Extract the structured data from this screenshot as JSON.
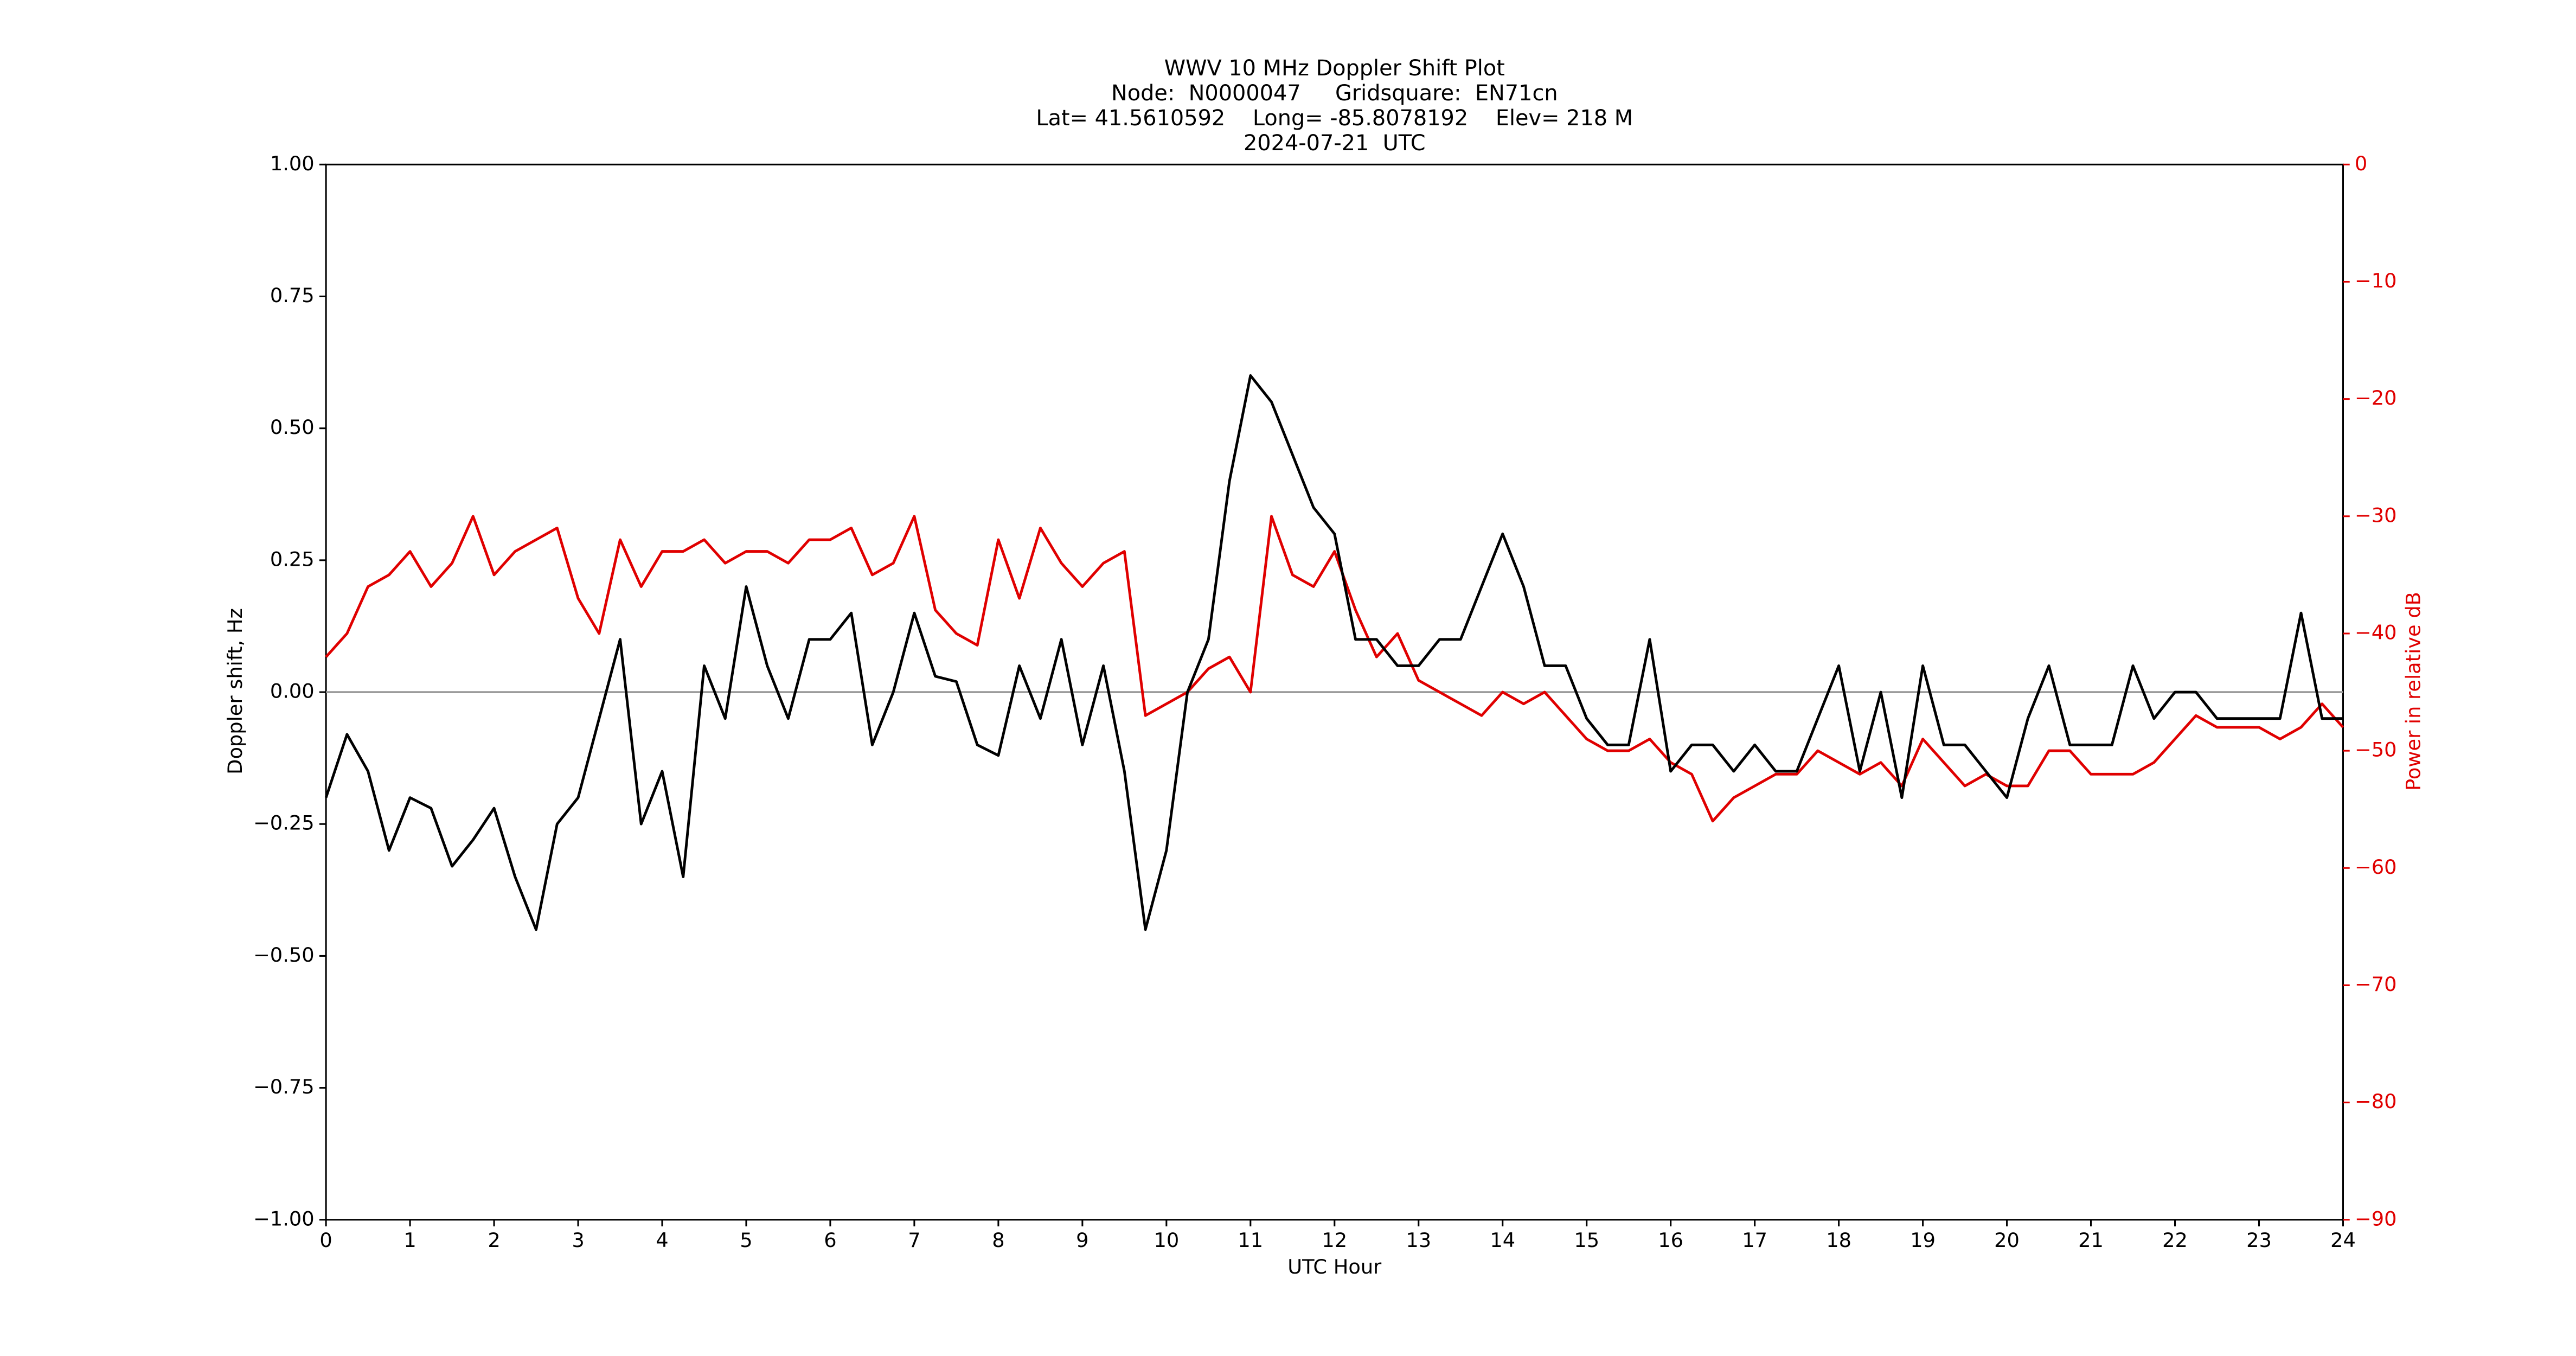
{
  "chart_data": {
    "type": "line",
    "title": [
      "WWV 10 MHz Doppler Shift Plot",
      "Node:  N0000047     Gridsquare:  EN71cn",
      "Lat= 41.5610592    Long= -85.8078192    Elev= 218 M",
      "2024-07-21  UTC"
    ],
    "xlabel": "UTC Hour",
    "ylabel": "Doppler shift, Hz",
    "y2label": "Power in relative dB",
    "xlim": [
      0,
      24
    ],
    "xticks": [
      0,
      1,
      2,
      3,
      4,
      5,
      6,
      7,
      8,
      9,
      10,
      11,
      12,
      13,
      14,
      15,
      16,
      17,
      18,
      19,
      20,
      21,
      22,
      23,
      24
    ],
    "ylim": [
      -1,
      1
    ],
    "yticks": [
      {
        "value": -1,
        "label": "−1.00"
      },
      {
        "value": -0.75,
        "label": "−0.75"
      },
      {
        "value": -0.5,
        "label": "−0.50"
      },
      {
        "value": -0.25,
        "label": "−0.25"
      },
      {
        "value": 0,
        "label": "0.00"
      },
      {
        "value": 0.25,
        "label": "0.25"
      },
      {
        "value": 0.5,
        "label": "0.50"
      },
      {
        "value": 0.75,
        "label": "0.75"
      },
      {
        "value": 1,
        "label": "1.00"
      }
    ],
    "y2lim": [
      -90,
      0
    ],
    "y2ticks": [
      {
        "value": -90,
        "label": "−90"
      },
      {
        "value": -80,
        "label": "−80"
      },
      {
        "value": -70,
        "label": "−70"
      },
      {
        "value": -60,
        "label": "−60"
      },
      {
        "value": -50,
        "label": "−50"
      },
      {
        "value": -40,
        "label": "−40"
      },
      {
        "value": -30,
        "label": "−30"
      },
      {
        "value": -20,
        "label": "−20"
      },
      {
        "value": -10,
        "label": "−10"
      },
      0
    ],
    "y2color": "#e00000",
    "zero_line": 0,
    "x": [
      0,
      0.25,
      0.5,
      0.75,
      1,
      1.25,
      1.5,
      1.75,
      2,
      2.25,
      2.5,
      2.75,
      3,
      3.25,
      3.5,
      3.75,
      4,
      4.25,
      4.5,
      4.75,
      5,
      5.25,
      5.5,
      5.75,
      6,
      6.25,
      6.5,
      6.75,
      7,
      7.25,
      7.5,
      7.75,
      8,
      8.25,
      8.5,
      8.75,
      9,
      9.25,
      9.5,
      9.75,
      10,
      10.25,
      10.5,
      10.75,
      11,
      11.25,
      11.5,
      11.75,
      12,
      12.25,
      12.5,
      12.75,
      13,
      13.25,
      13.5,
      13.75,
      14,
      14.25,
      14.5,
      14.75,
      15,
      15.25,
      15.5,
      15.75,
      16,
      16.25,
      16.5,
      16.75,
      17,
      17.25,
      17.5,
      17.75,
      18,
      18.25,
      18.5,
      18.75,
      19,
      19.25,
      19.5,
      19.75,
      20,
      20.25,
      20.5,
      20.75,
      21,
      21.25,
      21.5,
      21.75,
      22,
      22.25,
      22.5,
      22.75,
      23,
      23.25,
      23.5,
      23.75,
      24
    ],
    "series": [
      {
        "name": "Doppler shift",
        "color": "#000000",
        "values": [
          -0.2,
          -0.08,
          -0.15,
          -0.3,
          -0.2,
          -0.22,
          -0.33,
          -0.28,
          -0.22,
          -0.35,
          -0.45,
          -0.25,
          -0.2,
          -0.05,
          0.1,
          -0.25,
          -0.15,
          -0.35,
          0.05,
          -0.05,
          0.2,
          0.05,
          -0.05,
          0.1,
          0.1,
          0.15,
          -0.1,
          0,
          0.15,
          0.03,
          0.02,
          -0.1,
          -0.12,
          0.05,
          -0.05,
          0.1,
          -0.1,
          0.05,
          -0.15,
          -0.45,
          -0.3,
          0,
          0.1,
          0.4,
          0.6,
          0.55,
          0.45,
          0.35,
          0.3,
          0.1,
          0.1,
          0.05,
          0.05,
          0.1,
          0.1,
          0.2,
          0.3,
          0.2,
          0.05,
          0.05,
          -0.05,
          -0.1,
          -0.1,
          0.1,
          -0.15,
          -0.1,
          -0.1,
          -0.15,
          -0.1,
          -0.15,
          -0.15,
          -0.05,
          0.05,
          -0.15,
          0,
          -0.2,
          0.05,
          -0.1,
          -0.1,
          -0.15,
          -0.2,
          -0.05,
          0.05,
          -0.1,
          -0.1,
          -0.1,
          0.05,
          -0.05,
          0,
          0,
          -0.05,
          -0.05,
          -0.05,
          -0.05,
          0.15,
          -0.05,
          -0.05
        ]
      },
      {
        "name": "Power",
        "color": "#e00000",
        "axis": "y2",
        "values": [
          -42,
          -40,
          -36,
          -35,
          -33,
          -36,
          -34,
          -30,
          -35,
          -33,
          -32,
          -31,
          -37,
          -40,
          -32,
          -36,
          -33,
          -33,
          -32,
          -34,
          -33,
          -33,
          -34,
          -32,
          -32,
          -31,
          -35,
          -34,
          -30,
          -38,
          -40,
          -41,
          -32,
          -37,
          -31,
          -34,
          -36,
          -34,
          -33,
          -47,
          -46,
          -45,
          -43,
          -42,
          -45,
          -30,
          -35,
          -36,
          -33,
          -38,
          -42,
          -40,
          -44,
          -45,
          -46,
          -47,
          -45,
          -46,
          -45,
          -47,
          -49,
          -50,
          -50,
          -49,
          -51,
          -52,
          -56,
          -54,
          -53,
          -52,
          -52,
          -50,
          -51,
          -52,
          -51,
          -53,
          -49,
          -51,
          -53,
          -52,
          -53,
          -53,
          -50,
          -50,
          -52,
          -52,
          -52,
          -51,
          -49,
          -47,
          -48,
          -48,
          -48,
          -49,
          -48,
          -46,
          -48
        ]
      }
    ]
  }
}
